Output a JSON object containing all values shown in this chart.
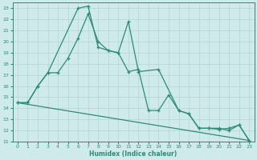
{
  "xlabel": "Humidex (Indice chaleur)",
  "xlim": [
    -0.5,
    23.5
  ],
  "ylim": [
    11,
    23.5
  ],
  "yticks": [
    11,
    12,
    13,
    14,
    15,
    16,
    17,
    18,
    19,
    20,
    21,
    22,
    23
  ],
  "xticks": [
    0,
    1,
    2,
    3,
    4,
    5,
    6,
    7,
    8,
    9,
    10,
    11,
    12,
    13,
    14,
    15,
    16,
    17,
    18,
    19,
    20,
    21,
    22,
    23
  ],
  "bg_color": "#ceeaea",
  "grid_color": "#b8d8d8",
  "line_color": "#2e8b74",
  "line1_x": [
    0,
    1,
    2,
    3,
    6,
    7,
    8,
    9,
    10,
    11,
    12,
    14,
    16,
    17,
    18,
    19,
    20,
    21,
    22,
    23
  ],
  "line1_y": [
    14.5,
    14.5,
    16.0,
    17.2,
    23.0,
    23.2,
    19.5,
    19.2,
    19.0,
    21.8,
    17.3,
    17.5,
    13.8,
    13.5,
    12.2,
    12.2,
    12.2,
    12.0,
    12.5,
    11.1
  ],
  "line2_x": [
    0,
    1,
    2,
    3,
    4,
    5,
    6,
    7,
    8,
    9,
    10,
    11,
    12,
    13,
    14,
    15,
    16,
    17,
    18,
    19,
    20,
    21,
    22,
    23
  ],
  "line2_y": [
    14.5,
    14.5,
    16.0,
    17.2,
    17.2,
    18.5,
    20.3,
    22.5,
    20.0,
    19.2,
    19.0,
    17.3,
    17.5,
    13.8,
    13.8,
    15.2,
    13.8,
    13.5,
    12.2,
    12.2,
    12.1,
    12.2,
    12.5,
    11.1
  ],
  "line3_x": [
    0,
    23
  ],
  "line3_y": [
    14.5,
    11.1
  ]
}
